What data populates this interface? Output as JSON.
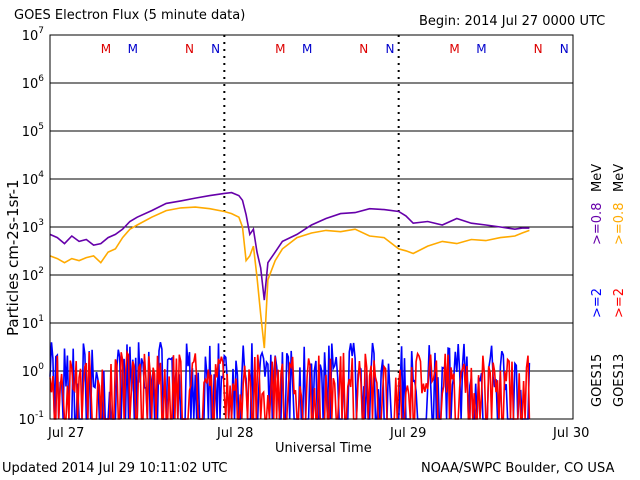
{
  "header": {
    "title": "GOES Electron Flux (5 minute data)",
    "begin": "Begin: 2014 Jul 27 0000 UTC"
  },
  "footer": {
    "updated": "Updated 2014 Jul 29 10:11:02 UTC",
    "credit": "NOAA/SWPC Boulder, CO USA"
  },
  "colors": {
    "purple": "#6600aa",
    "orange": "#ffaa00",
    "blue": "#0000ff",
    "red": "#ff0000",
    "marker_red": "#dd0000",
    "marker_blue": "#0000cc"
  },
  "right_legend": {
    "goes13": "GOES13",
    "goes15": "GOES15",
    "red_ge2": ">=2",
    "blue_ge2": ">=2",
    "orange_ge08": ">=0.8",
    "purple_ge08": ">=0.8",
    "mev": "MeV"
  },
  "chart_data": {
    "type": "line",
    "title": "GOES Electron Flux (5 minute data)",
    "xlabel": "Universal Time",
    "ylabel": "Particles cm-2s-1sr-1",
    "x_ticks": [
      "Jul 27",
      "Jul 28",
      "Jul 29",
      "Jul 30"
    ],
    "xlim_hours": [
      0,
      72
    ],
    "yscale": "log",
    "ylim": [
      0.1,
      10000000
    ],
    "y_ticks": [
      {
        "value": 0.1,
        "base": "10",
        "exp": "-1"
      },
      {
        "value": 1,
        "base": "10",
        "exp": "0"
      },
      {
        "value": 10,
        "base": "10",
        "exp": "1"
      },
      {
        "value": 100,
        "base": "10",
        "exp": "2"
      },
      {
        "value": 1000,
        "base": "10",
        "exp": "3"
      },
      {
        "value": 10000,
        "base": "10",
        "exp": "4"
      },
      {
        "value": 100000,
        "base": "10",
        "exp": "5"
      },
      {
        "value": 1000000,
        "base": "10",
        "exp": "6"
      },
      {
        "value": 10000000,
        "base": "10",
        "exp": "7"
      }
    ],
    "threshold": 1000,
    "grid": true,
    "day_markers": [
      {
        "label": "M",
        "hour": 7.7,
        "color": "marker_red"
      },
      {
        "label": "M",
        "hour": 11.4,
        "color": "marker_blue"
      },
      {
        "label": "N",
        "hour": 19.2,
        "color": "marker_red"
      },
      {
        "label": "N",
        "hour": 22.8,
        "color": "marker_blue"
      },
      {
        "label": "M",
        "hour": 31.7,
        "color": "marker_red"
      },
      {
        "label": "M",
        "hour": 35.4,
        "color": "marker_blue"
      },
      {
        "label": "N",
        "hour": 43.2,
        "color": "marker_red"
      },
      {
        "label": "N",
        "hour": 46.8,
        "color": "marker_blue"
      },
      {
        "label": "M",
        "hour": 55.7,
        "color": "marker_red"
      },
      {
        "label": "M",
        "hour": 59.4,
        "color": "marker_blue"
      },
      {
        "label": "N",
        "hour": 67.2,
        "color": "marker_red"
      },
      {
        "label": "N",
        "hour": 70.8,
        "color": "marker_blue"
      }
    ],
    "dashed_verticals_hours": [
      24,
      48
    ],
    "series": [
      {
        "color": "purple",
        "x_hours": [
          0,
          1,
          2,
          3,
          4,
          5,
          6,
          7,
          8,
          9,
          10,
          11,
          12,
          14,
          16,
          18,
          20,
          22,
          24,
          25,
          26,
          26.5,
          27,
          27.5,
          28,
          28.5,
          29,
          29.5,
          30,
          31,
          32,
          34,
          36,
          38,
          40,
          42,
          44,
          46,
          48,
          49,
          50,
          52,
          54,
          56,
          58,
          60,
          62,
          64,
          65,
          66
        ],
        "values": [
          700,
          600,
          450,
          650,
          500,
          550,
          420,
          450,
          600,
          700,
          900,
          1300,
          1600,
          2200,
          3100,
          3500,
          4000,
          4500,
          5000,
          5200,
          4500,
          3600,
          1800,
          700,
          900,
          300,
          140,
          30,
          180,
          300,
          500,
          700,
          1100,
          1500,
          1900,
          2000,
          2400,
          2300,
          2100,
          1700,
          1200,
          1300,
          1100,
          1500,
          1200,
          1100,
          1000,
          900,
          950,
          950
        ]
      },
      {
        "color": "orange",
        "x_hours": [
          0,
          1,
          2,
          3,
          4,
          5,
          6,
          7,
          8,
          9,
          10,
          11,
          12,
          14,
          16,
          18,
          20,
          22,
          24,
          25,
          26,
          26.5,
          27,
          27.5,
          28,
          28.5,
          29,
          29.5,
          30,
          31,
          32,
          34,
          36,
          38,
          40,
          42,
          44,
          46,
          48,
          49,
          50,
          52,
          54,
          56,
          58,
          60,
          62,
          64,
          65,
          66
        ],
        "values": [
          250,
          220,
          180,
          220,
          200,
          230,
          250,
          180,
          300,
          350,
          600,
          900,
          1100,
          1600,
          2200,
          2500,
          2600,
          2400,
          2100,
          1900,
          1600,
          1000,
          200,
          250,
          400,
          90,
          15,
          3,
          80,
          200,
          350,
          600,
          750,
          850,
          800,
          900,
          650,
          600,
          350,
          320,
          280,
          400,
          500,
          450,
          550,
          520,
          600,
          650,
          750,
          850
        ]
      },
      {
        "color": "blue",
        "kind": "spiky",
        "x_range_hours": [
          0,
          66
        ],
        "typical_range": [
          0.1,
          4
        ]
      },
      {
        "color": "red",
        "kind": "spiky",
        "x_range_hours": [
          0,
          66
        ],
        "typical_range": [
          0.1,
          2.5
        ]
      }
    ]
  }
}
